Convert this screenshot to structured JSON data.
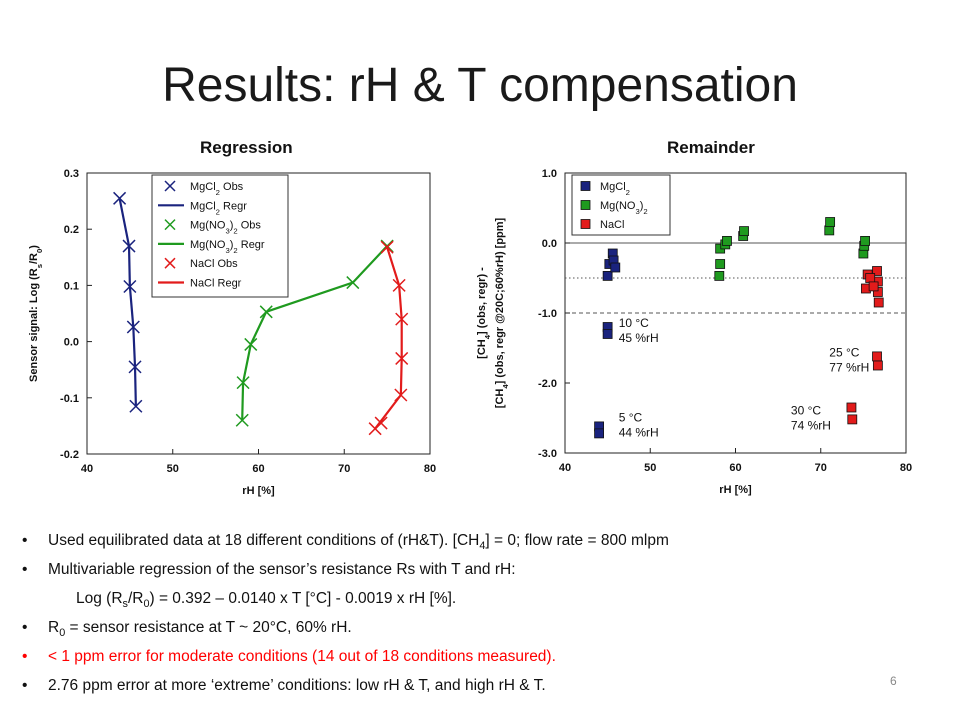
{
  "title": "Results: rH & T compensation",
  "bullets": [
    {
      "parts": [
        "Used equilibrated data at 18 different conditions of (rH&T). [CH",
        "4",
        "] = 0; flow rate = 800 mlpm"
      ],
      "color": "black"
    },
    {
      "parts": [
        "Multivariable regression of the sensor’s resistance Rs with T and rH:"
      ],
      "color": "black"
    },
    {
      "parts": [
        "Log (R",
        "s",
        "/R",
        "0",
        ") = 0.392 – 0.0140 x T [°C] - 0.0019 x rH [%]."
      ],
      "color": "black",
      "indent": true
    },
    {
      "parts": [
        "R",
        "0",
        " = sensor resistance at T ~ 20°C, 60% rH."
      ],
      "color": "black"
    },
    {
      "parts": [
        "< 1 ppm error for moderate conditions (14 out of 18 conditions measured)."
      ],
      "color": "red"
    },
    {
      "parts": [
        "2.76 ppm error at more ‘extreme’ conditions: low rH & T, and high rH & T."
      ],
      "color": "black"
    }
  ],
  "page_number": "6",
  "colors": {
    "blue": "#1a237e",
    "green": "#1f9a1f",
    "red": "#e21b1b"
  },
  "chart_data": [
    {
      "type": "scatter",
      "title": "Regression",
      "xlabel": "rH [%]",
      "ylabel": [
        "Sensor signal: Log (R",
        "s",
        "/R",
        "0",
        ")"
      ],
      "xlim": [
        40,
        80
      ],
      "ylim": [
        -0.2,
        0.3
      ],
      "xticks": [
        40,
        50,
        60,
        70,
        80
      ],
      "yticks": [
        -0.2,
        -0.1,
        0.0,
        0.1,
        0.2,
        0.3
      ],
      "legend_position": "top-center",
      "legend": [
        {
          "parts": [
            "MgCl",
            "2",
            " Obs"
          ],
          "kind": "marker",
          "color": "#1a237e"
        },
        {
          "parts": [
            "MgCl",
            "2",
            " Regr"
          ],
          "kind": "line",
          "color": "#1a237e"
        },
        {
          "parts": [
            "Mg(NO",
            "3",
            ")",
            "2",
            " Obs"
          ],
          "kind": "marker",
          "color": "#1f9a1f"
        },
        {
          "parts": [
            "Mg(NO",
            "3",
            ")",
            "2",
            " Regr"
          ],
          "kind": "line",
          "color": "#1f9a1f"
        },
        {
          "parts": [
            "NaCl Obs"
          ],
          "kind": "marker",
          "color": "#e21b1b"
        },
        {
          "parts": [
            "NaCl Regr"
          ],
          "kind": "line",
          "color": "#e21b1b"
        }
      ],
      "series": [
        {
          "color": "#1a237e",
          "obs": [
            [
              43.8,
              0.255
            ],
            [
              44.9,
              0.17
            ],
            [
              45.0,
              0.098
            ],
            [
              45.4,
              0.026
            ],
            [
              45.6,
              -0.045
            ],
            [
              45.7,
              -0.115
            ]
          ],
          "regr": [
            [
              43.8,
              0.255
            ],
            [
              44.9,
              0.17
            ],
            [
              45.0,
              0.098
            ],
            [
              45.4,
              0.026
            ],
            [
              45.6,
              -0.045
            ],
            [
              45.7,
              -0.115
            ]
          ]
        },
        {
          "color": "#1f9a1f",
          "obs": [
            [
              58.1,
              -0.14
            ],
            [
              58.2,
              -0.073
            ],
            [
              59.1,
              -0.005
            ],
            [
              60.9,
              0.053
            ],
            [
              71.0,
              0.105
            ],
            [
              75.0,
              0.17
            ]
          ],
          "regr": [
            [
              58.1,
              -0.14
            ],
            [
              58.2,
              -0.073
            ],
            [
              59.1,
              -0.005
            ],
            [
              60.9,
              0.053
            ],
            [
              71.0,
              0.105
            ],
            [
              75.0,
              0.17
            ]
          ]
        },
        {
          "color": "#e21b1b",
          "obs": [
            [
              73.6,
              -0.155
            ],
            [
              74.3,
              -0.145
            ],
            [
              76.6,
              -0.095
            ],
            [
              76.7,
              -0.03
            ],
            [
              76.7,
              0.04
            ],
            [
              76.4,
              0.1
            ],
            [
              75.0,
              0.168
            ]
          ],
          "regr": [
            [
              73.6,
              -0.155
            ],
            [
              76.6,
              -0.095
            ],
            [
              76.7,
              -0.03
            ],
            [
              76.7,
              0.04
            ],
            [
              76.4,
              0.1
            ],
            [
              75.0,
              0.168
            ]
          ]
        }
      ]
    },
    {
      "type": "scatter",
      "title": "Remainder",
      "xlabel": "rH [%]",
      "ylabel_lines": [
        [
          "[CH",
          "4",
          "] (obs, regr) -"
        ],
        [
          "[CH",
          "4",
          "] (obs, regr @20C;60%rH) [ppm]"
        ]
      ],
      "xlim": [
        40,
        80
      ],
      "ylim": [
        -3.0,
        1.0
      ],
      "xticks": [
        40,
        50,
        60,
        70,
        80
      ],
      "yticks": [
        -3.0,
        -2.0,
        -1.0,
        0.0,
        1.0
      ],
      "ytick_labels": [
        "-3.0",
        "-2.0",
        "-1.0",
        "0.0",
        "1.0"
      ],
      "reference_lines": [
        {
          "y": 0.0,
          "style": "solid"
        },
        {
          "y": -0.5,
          "style": "dotted"
        },
        {
          "y": -1.0,
          "style": "dashed"
        }
      ],
      "legend_position": "top-left",
      "legend": [
        {
          "parts": [
            "MgCl",
            "2"
          ],
          "color": "#1a237e"
        },
        {
          "parts": [
            "Mg(NO",
            "3",
            ")",
            "2"
          ],
          "color": "#1f9a1f"
        },
        {
          "parts": [
            "NaCl"
          ],
          "color": "#e21b1b"
        }
      ],
      "series": [
        {
          "color": "#1a237e",
          "points": [
            [
              44.0,
              -2.62
            ],
            [
              44.0,
              -2.72
            ],
            [
              45.0,
              -1.2
            ],
            [
              45.0,
              -1.3
            ],
            [
              45.0,
              -0.47
            ],
            [
              45.2,
              -0.3
            ],
            [
              45.6,
              -0.15
            ],
            [
              45.7,
              -0.25
            ],
            [
              45.9,
              -0.35
            ]
          ]
        },
        {
          "color": "#1f9a1f",
          "points": [
            [
              58.1,
              -0.47
            ],
            [
              58.2,
              -0.3
            ],
            [
              58.2,
              -0.08
            ],
            [
              58.8,
              -0.02
            ],
            [
              59.0,
              0.03
            ],
            [
              60.9,
              0.1
            ],
            [
              61.0,
              0.17
            ],
            [
              71.0,
              0.18
            ],
            [
              71.1,
              0.3
            ],
            [
              75.0,
              -0.15
            ],
            [
              75.1,
              -0.04
            ],
            [
              75.2,
              0.03
            ]
          ]
        },
        {
          "color": "#e21b1b",
          "points": [
            [
              73.6,
              -2.35
            ],
            [
              73.7,
              -2.52
            ],
            [
              75.3,
              -0.65
            ],
            [
              75.5,
              -0.45
            ],
            [
              76.6,
              -0.4
            ],
            [
              76.7,
              -0.55
            ],
            [
              76.7,
              -0.7
            ],
            [
              76.8,
              -0.85
            ],
            [
              76.6,
              -1.62
            ],
            [
              76.7,
              -1.75
            ],
            [
              75.8,
              -0.5
            ],
            [
              76.2,
              -0.62
            ]
          ]
        }
      ],
      "annotations": [
        {
          "lines": [
            "10 °C",
            "45 %rH"
          ],
          "x": 46.3,
          "y": -1.2
        },
        {
          "lines": [
            "25 °C",
            "77 %rH"
          ],
          "x": 71.0,
          "y": -1.62
        },
        {
          "lines": [
            "30 °C",
            "74 %rH"
          ],
          "x": 66.5,
          "y": -2.45
        },
        {
          "lines": [
            "5 °C",
            "44 %rH"
          ],
          "x": 46.3,
          "y": -2.55
        }
      ]
    }
  ]
}
